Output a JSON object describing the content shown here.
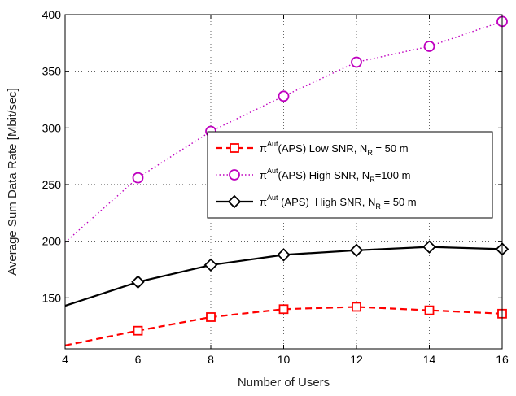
{
  "chart_data": {
    "type": "line",
    "xlabel": "Number of Users",
    "ylabel": "Average Sum Data Rate [Mbit/sec]",
    "xlim": [
      4,
      16
    ],
    "ylim": [
      105,
      400
    ],
    "xticks": [
      4,
      6,
      8,
      10,
      12,
      14,
      16
    ],
    "yticks": [
      150,
      200,
      250,
      300,
      350,
      400
    ],
    "grid": true,
    "legend_position": "center-right",
    "x": [
      4,
      6,
      8,
      10,
      12,
      14,
      16
    ],
    "series": [
      {
        "name_parts": {
          "sym": "π",
          "sup": "Aut",
          "pre": "(APS) Low SNR, N",
          "sub": "R",
          "post": " = 50 m"
        },
        "values": [
          108,
          121,
          133,
          140,
          142,
          139,
          136
        ],
        "color": "#ff0000",
        "dash": "dashed",
        "marker": "square"
      },
      {
        "name_parts": {
          "sym": "π",
          "sup": "Aut",
          "pre": "(APS) High SNR, N",
          "sub": "R",
          "post": "=100 m"
        },
        "values": [
          199,
          256,
          297,
          328,
          358,
          372,
          394
        ],
        "color": "#bf00bf",
        "dash": "dotted",
        "marker": "circle"
      },
      {
        "name_parts": {
          "sym": "π",
          "sup": "Aut",
          "pre": " (APS)  High SNR, N",
          "sub": "R",
          "post": " = 50 m"
        },
        "values": [
          143,
          164,
          179,
          188,
          192,
          195,
          193
        ],
        "color": "#000000",
        "dash": "solid",
        "marker": "diamond"
      }
    ]
  }
}
